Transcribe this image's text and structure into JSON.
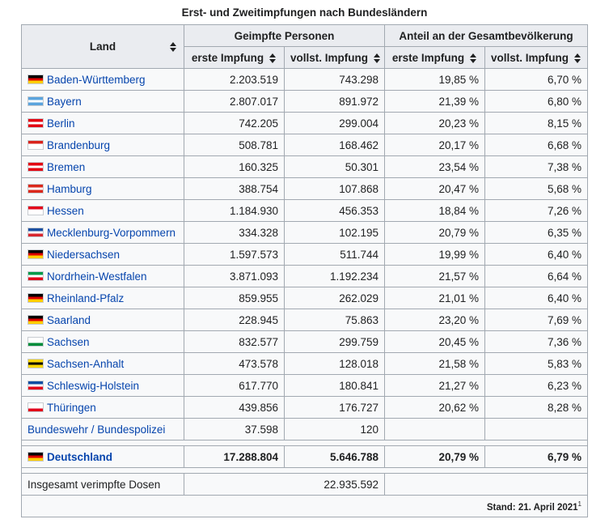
{
  "caption": "Erst- und Zweitimpfungen nach Bundesländern",
  "headers": {
    "land": "Land",
    "geimpfte": "Geimpfte Personen",
    "anteil": "Anteil an der Gesamtbevölkerung",
    "erste": "erste Impfung",
    "vollst": "vollst. Impfung"
  },
  "rows": [
    {
      "name": "Baden-Württemberg",
      "erste": "2.203.519",
      "vollst": "743.298",
      "erste_pct": "19,85 %",
      "vollst_pct": "6,70 %",
      "flag": [
        "#000000",
        "#dd0000",
        "#ffce00"
      ]
    },
    {
      "name": "Bayern",
      "erste": "2.807.017",
      "vollst": "891.972",
      "erste_pct": "21,39 %",
      "vollst_pct": "6,80 %",
      "flag": [
        "#5ba4dd",
        "#ffffff",
        "#5ba4dd"
      ]
    },
    {
      "name": "Berlin",
      "erste": "742.205",
      "vollst": "299.004",
      "erste_pct": "20,23 %",
      "vollst_pct": "8,15 %",
      "flag": [
        "#e30613",
        "#ffffff",
        "#e30613"
      ]
    },
    {
      "name": "Brandenburg",
      "erste": "508.781",
      "vollst": "168.462",
      "erste_pct": "20,17 %",
      "vollst_pct": "6,68 %",
      "flag": [
        "#d9241c",
        "#ffffff",
        "#ffffff"
      ]
    },
    {
      "name": "Bremen",
      "erste": "160.325",
      "vollst": "50.301",
      "erste_pct": "23,54 %",
      "vollst_pct": "7,38 %",
      "flag": [
        "#e30613",
        "#ffffff",
        "#e30613"
      ]
    },
    {
      "name": "Hamburg",
      "erste": "388.754",
      "vollst": "107.868",
      "erste_pct": "20,47 %",
      "vollst_pct": "5,68 %",
      "flag": [
        "#da291c",
        "#ffffff",
        "#da291c"
      ]
    },
    {
      "name": "Hessen",
      "erste": "1.184.930",
      "vollst": "456.353",
      "erste_pct": "18,84 %",
      "vollst_pct": "7,26 %",
      "flag": [
        "#e2001a",
        "#ffffff",
        "#ffffff"
      ]
    },
    {
      "name": "Mecklenburg-Vorpommern",
      "erste": "334.328",
      "vollst": "102.195",
      "erste_pct": "20,79 %",
      "vollst_pct": "6,35 %",
      "flag": [
        "#1a4fa0",
        "#ffffff",
        "#d8272f"
      ]
    },
    {
      "name": "Niedersachsen",
      "erste": "1.597.573",
      "vollst": "511.744",
      "erste_pct": "19,99 %",
      "vollst_pct": "6,40 %",
      "flag": [
        "#000000",
        "#dd0000",
        "#ffce00"
      ]
    },
    {
      "name": "Nordrhein-Westfalen",
      "erste": "3.871.093",
      "vollst": "1.192.234",
      "erste_pct": "21,57 %",
      "vollst_pct": "6,64 %",
      "flag": [
        "#009a49",
        "#ffffff",
        "#e2001a"
      ]
    },
    {
      "name": "Rheinland-Pfalz",
      "erste": "859.955",
      "vollst": "262.029",
      "erste_pct": "21,01 %",
      "vollst_pct": "6,40 %",
      "flag": [
        "#000000",
        "#dd0000",
        "#ffce00"
      ]
    },
    {
      "name": "Saarland",
      "erste": "228.945",
      "vollst": "75.863",
      "erste_pct": "23,20 %",
      "vollst_pct": "7,69 %",
      "flag": [
        "#000000",
        "#dd0000",
        "#ffce00"
      ]
    },
    {
      "name": "Sachsen",
      "erste": "832.577",
      "vollst": "299.759",
      "erste_pct": "20,45 %",
      "vollst_pct": "7,36 %",
      "flag": [
        "#ffffff",
        "#ffffff",
        "#008c3a"
      ]
    },
    {
      "name": "Sachsen-Anhalt",
      "erste": "473.578",
      "vollst": "128.018",
      "erste_pct": "21,58 %",
      "vollst_pct": "5,83 %",
      "flag": [
        "#fdd800",
        "#000000",
        "#fdd800"
      ]
    },
    {
      "name": "Schleswig-Holstein",
      "erste": "617.770",
      "vollst": "180.841",
      "erste_pct": "21,27 %",
      "vollst_pct": "6,23 %",
      "flag": [
        "#0c4da2",
        "#ffffff",
        "#e2001a"
      ]
    },
    {
      "name": "Thüringen",
      "erste": "439.856",
      "vollst": "176.727",
      "erste_pct": "20,62 %",
      "vollst_pct": "8,28 %",
      "flag": [
        "#ffffff",
        "#ffffff",
        "#e2001a"
      ]
    }
  ],
  "bundeswehr": {
    "name": "Bundeswehr / Bundespolizei",
    "erste": "37.598",
    "vollst": "120"
  },
  "total": {
    "name": "Deutschland",
    "erste": "17.288.804",
    "vollst": "5.646.788",
    "erste_pct": "20,79 %",
    "vollst_pct": "6,79 %",
    "flag": [
      "#000000",
      "#dd0000",
      "#ffce00"
    ]
  },
  "dosen": {
    "label": "Insgesamt verimpfte Dosen",
    "value": "22.935.592"
  },
  "footer": {
    "stand": "Stand: 21. April 2021",
    "ref": "1"
  },
  "colors": {
    "link": "#0645ad",
    "header_bg": "#eaecf0",
    "cell_bg": "#f8f9fa",
    "border": "#a2a9b1"
  }
}
